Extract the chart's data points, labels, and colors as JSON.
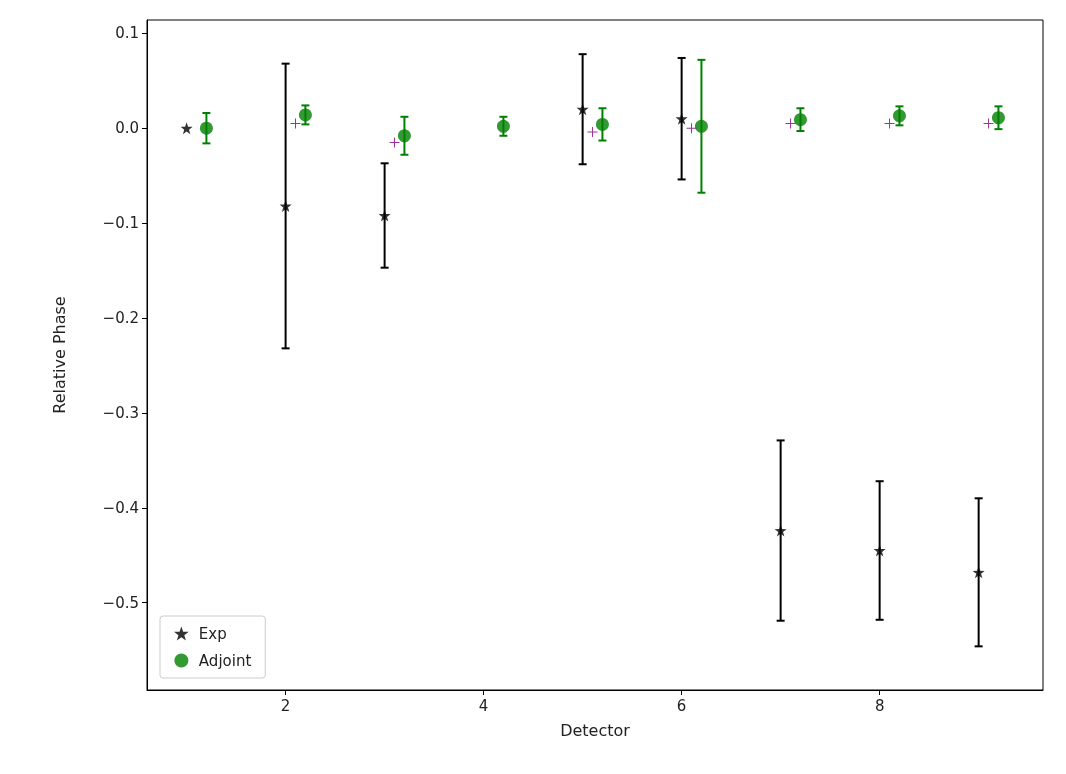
{
  "chart_data": {
    "type": "scatter",
    "xlabel": "Detector",
    "ylabel": "Relative Phase",
    "xlim": [
      0.6,
      9.65
    ],
    "ylim": [
      -0.592,
      0.114
    ],
    "xticks": [
      2,
      4,
      6,
      8
    ],
    "yticks": [
      {
        "value": -0.5,
        "label": "−0.5"
      },
      {
        "value": -0.4,
        "label": "−0.4"
      },
      {
        "value": -0.3,
        "label": "−0.3"
      },
      {
        "value": -0.2,
        "label": "−0.2"
      },
      {
        "value": -0.1,
        "label": "−0.1"
      },
      {
        "value": 0,
        "label": "0.0"
      },
      {
        "value": 0.1,
        "label": "0.1"
      }
    ],
    "grid": false,
    "legend": "bottom left",
    "series": [
      {
        "name": "Exp",
        "color": "#000000",
        "marker": "star",
        "x": [
          1,
          2,
          3,
          5,
          6,
          7,
          8,
          9
        ],
        "values": [
          0,
          -0.082,
          -0.092,
          0.02,
          0.01,
          -0.424,
          -0.445,
          -0.468
        ],
        "errors": [
          null,
          0.15,
          0.055,
          0.058,
          0.064,
          0.095,
          0.073,
          0.078
        ]
      },
      {
        "color": "#800080",
        "marker": "cross",
        "x": [
          2.1,
          3.1,
          5.1,
          6.1,
          7.1,
          8.1,
          9.1
        ],
        "values": [
          0.005,
          -0.015,
          -0.004,
          0,
          0.005,
          0.005,
          0.005
        ]
      },
      {
        "name": "Adjoint",
        "color": "#008000",
        "marker": "circle",
        "x": [
          1.2,
          2.2,
          3.2,
          4.2,
          5.2,
          6.2,
          7.2,
          8.2,
          9.2
        ],
        "values": [
          0,
          0.014,
          -0.008,
          0.002,
          0.004,
          0.002,
          0.009,
          0.013,
          0.011
        ],
        "errors": [
          0.016,
          0.01,
          0.02,
          0.01,
          0.017,
          0.07,
          0.012,
          0.01,
          0.012
        ]
      }
    ]
  }
}
